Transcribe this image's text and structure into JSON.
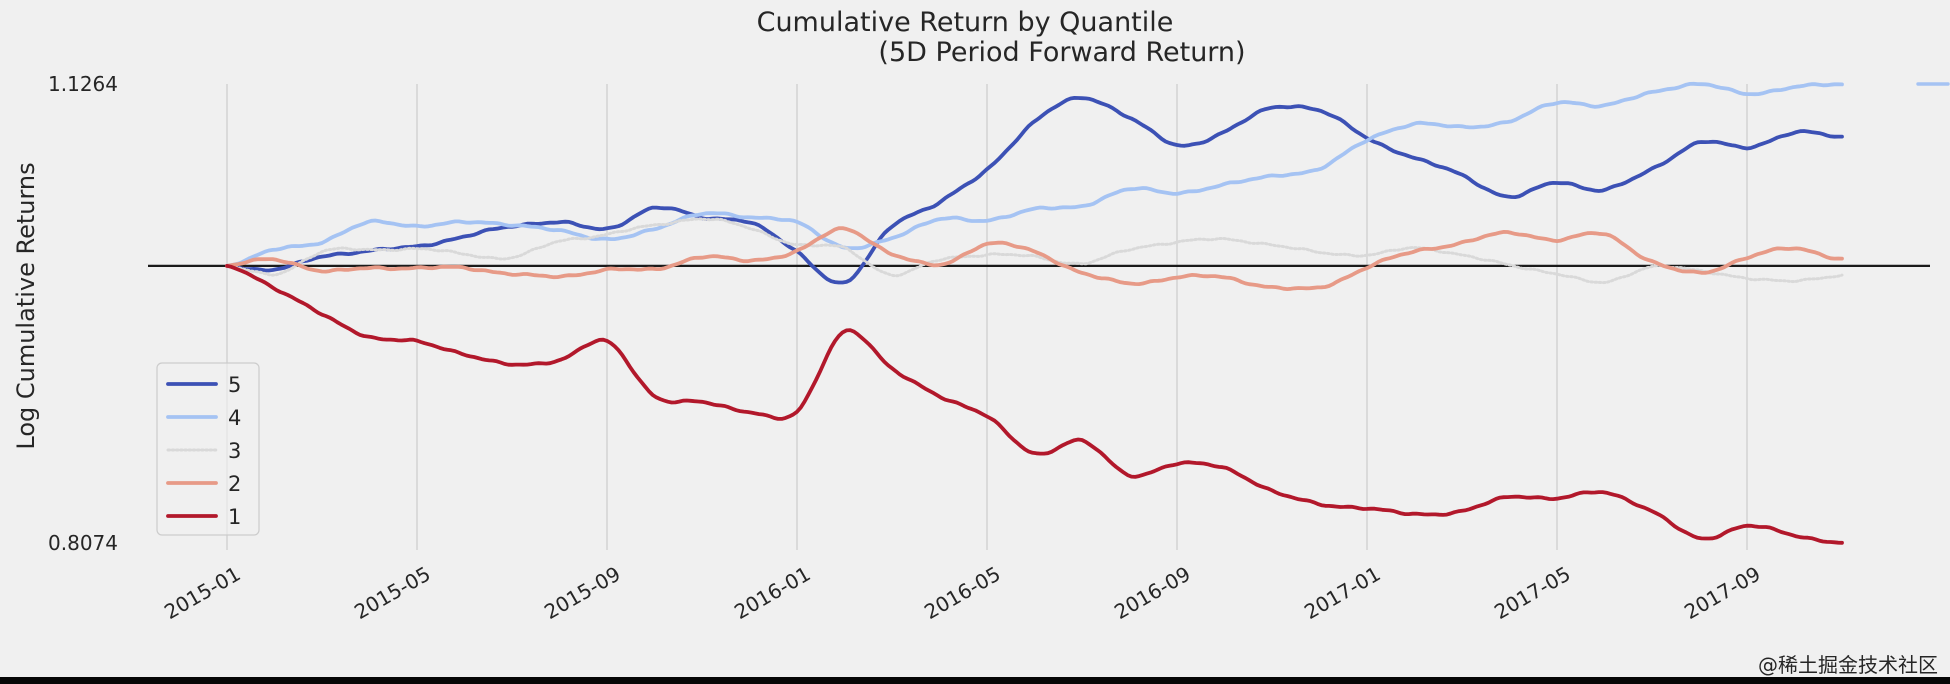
{
  "watermark": "@稀土掘金技术社区",
  "colors": {
    "background": "#f0f0f0",
    "gridline": "#d8d8d8",
    "baseline": "#1a1a1a",
    "text": "#262626",
    "watermark": "#c9c9c9",
    "legend_border": "#cccccc",
    "bottom_bar": "#060606"
  },
  "chart_data": {
    "type": "line",
    "title": "Cumulative Return by Quantile",
    "subtitle": "(5D Period Forward Return)",
    "xlabel": "",
    "ylabel": "Log Cumulative Returns",
    "y_ticks": {
      "top": "1.1264",
      "bottom": "0.8074"
    },
    "ylim": [
      0.8074,
      1.1264
    ],
    "baseline_value": 1.0,
    "grid": "vertical-only",
    "legend_position": "center-left",
    "x": [
      "2015-01",
      "2015-02",
      "2015-03",
      "2015-04",
      "2015-05",
      "2015-06",
      "2015-07",
      "2015-08",
      "2015-09",
      "2015-10",
      "2015-11",
      "2015-12",
      "2016-01",
      "2016-02",
      "2016-03",
      "2016-04",
      "2016-05",
      "2016-06",
      "2016-07",
      "2016-08",
      "2016-09",
      "2016-10",
      "2016-11",
      "2016-12",
      "2017-01",
      "2017-02",
      "2017-03",
      "2017-04",
      "2017-05",
      "2017-06",
      "2017-07",
      "2017-08",
      "2017-09",
      "2017-10",
      "2017-11"
    ],
    "x_gridlines": [
      "2015-01",
      "2015-05",
      "2015-09",
      "2016-01",
      "2016-05",
      "2016-09",
      "2017-01",
      "2017-05",
      "2017-09"
    ],
    "legend_entries": [
      "5",
      "4",
      "3",
      "2",
      "1"
    ],
    "series": [
      {
        "name": "5",
        "color": "#3c51b5",
        "style": "solid",
        "values": [
          1.0,
          0.997,
          1.007,
          1.01,
          1.014,
          1.02,
          1.028,
          1.03,
          1.026,
          1.04,
          1.034,
          1.03,
          1.01,
          0.988,
          1.028,
          1.044,
          1.067,
          1.1,
          1.117,
          1.103,
          1.084,
          1.093,
          1.11,
          1.108,
          1.089,
          1.075,
          1.063,
          1.048,
          1.058,
          1.053,
          1.067,
          1.086,
          1.082,
          1.093,
          1.089
        ]
      },
      {
        "name": "4",
        "color": "#a5c3f3",
        "style": "solid",
        "trailing_dash_value": 1.1264,
        "values": [
          1.0,
          1.011,
          1.017,
          1.03,
          1.028,
          1.03,
          1.029,
          1.024,
          1.019,
          1.025,
          1.037,
          1.033,
          1.031,
          1.012,
          1.02,
          1.032,
          1.032,
          1.039,
          1.042,
          1.053,
          1.051,
          1.056,
          1.063,
          1.067,
          1.088,
          1.098,
          1.097,
          1.1,
          1.114,
          1.111,
          1.121,
          1.126,
          1.12,
          1.124,
          1.1264
        ]
      },
      {
        "name": "3",
        "color": "#d9d9d9",
        "style": "dotted",
        "values": [
          1.0,
          0.994,
          1.01,
          1.011,
          1.012,
          1.008,
          1.006,
          1.017,
          1.022,
          1.028,
          1.033,
          1.026,
          1.015,
          1.012,
          0.994,
          1.004,
          1.008,
          1.006,
          1.002,
          1.011,
          1.017,
          1.018,
          1.015,
          1.009,
          1.008,
          1.012,
          1.008,
          1.0,
          0.995,
          0.988,
          1.0,
          0.996,
          0.992,
          0.989,
          0.994
        ]
      },
      {
        "name": "2",
        "color": "#e79a87",
        "style": "solid",
        "values": [
          1.0,
          1.005,
          0.996,
          0.999,
          0.998,
          0.999,
          0.994,
          0.993,
          0.997,
          0.998,
          1.006,
          1.004,
          1.01,
          1.026,
          1.008,
          1.001,
          1.015,
          1.01,
          0.995,
          0.988,
          0.992,
          0.992,
          0.985,
          0.985,
          0.999,
          1.01,
          1.016,
          1.023,
          1.018,
          1.022,
          1.003,
          0.995,
          1.006,
          1.012,
          1.005
        ]
      },
      {
        "name": "1",
        "color": "#b2182b",
        "style": "solid",
        "values": [
          1.0,
          0.985,
          0.966,
          0.951,
          0.947,
          0.939,
          0.931,
          0.935,
          0.947,
          0.91,
          0.905,
          0.899,
          0.898,
          0.955,
          0.928,
          0.91,
          0.895,
          0.87,
          0.878,
          0.855,
          0.862,
          0.86,
          0.843,
          0.835,
          0.831,
          0.828,
          0.829,
          0.84,
          0.838,
          0.843,
          0.829,
          0.811,
          0.819,
          0.813,
          0.8074
        ]
      }
    ]
  }
}
